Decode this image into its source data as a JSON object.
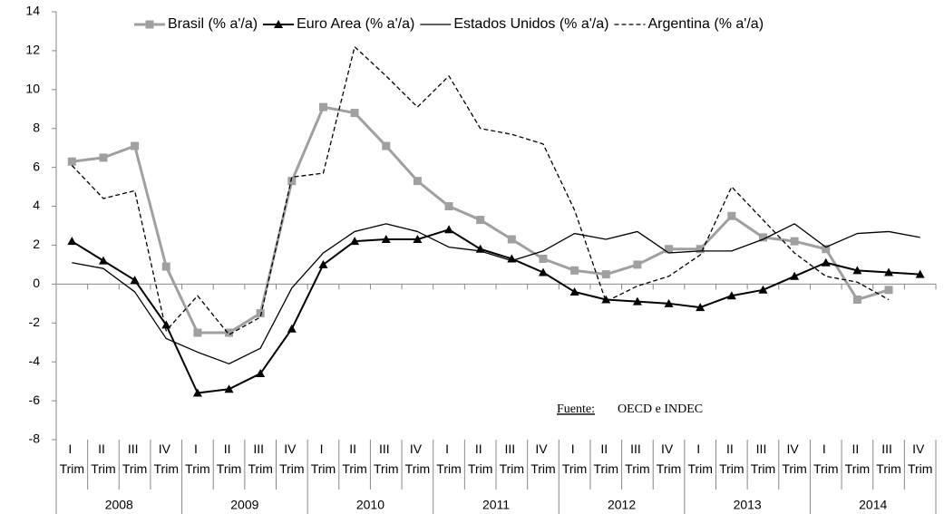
{
  "chart_data": {
    "type": "line",
    "categories": [
      "I Trim",
      "II Trim",
      "III Trim",
      "IV Trim",
      "I Trim",
      "II Trim",
      "III Trim",
      "IV Trim",
      "I Trim",
      "II Trim",
      "III Trim",
      "IV Trim",
      "I Trim",
      "II Trim",
      "III Trim",
      "IV Trim",
      "I Trim",
      "II Trim",
      "III Trim",
      "IV Trim",
      "I Trim",
      "II Trim",
      "III Trim",
      "IV Trim",
      "I Trim",
      "II Trim",
      "III Trim",
      "IV Trim"
    ],
    "years": [
      "2008",
      "2009",
      "2010",
      "2011",
      "2012",
      "2013",
      "2014"
    ],
    "series": [
      {
        "name": "Brasil (% a'/a)",
        "color": "#a0a0a0",
        "marker": "square",
        "dash": "solid",
        "width": 3,
        "values": [
          6.3,
          6.5,
          7.1,
          0.9,
          -2.5,
          -2.5,
          -1.5,
          5.3,
          9.1,
          8.8,
          7.1,
          5.3,
          4.0,
          3.3,
          2.3,
          1.3,
          0.7,
          0.5,
          1.0,
          1.8,
          1.8,
          3.5,
          2.4,
          2.2,
          1.8,
          -0.8,
          -0.3,
          null
        ]
      },
      {
        "name": "Euro Area (% a'/a)",
        "color": "#000000",
        "marker": "triangle",
        "dash": "solid",
        "width": 2,
        "values": [
          2.2,
          1.2,
          0.2,
          -2.1,
          -5.6,
          -5.4,
          -4.6,
          -2.3,
          1.0,
          2.2,
          2.3,
          2.3,
          2.8,
          1.8,
          1.3,
          0.6,
          -0.4,
          -0.8,
          -0.9,
          -1.0,
          -1.2,
          -0.6,
          -0.3,
          0.4,
          1.1,
          0.7,
          0.6,
          0.5
        ]
      },
      {
        "name": "Estados Unidos (% a'/a)",
        "color": "#000000",
        "marker": "none",
        "dash": "solid",
        "width": 1.3,
        "values": [
          1.1,
          0.8,
          -0.4,
          -2.8,
          -3.5,
          -4.1,
          -3.3,
          -0.2,
          1.6,
          2.7,
          3.1,
          2.7,
          1.9,
          1.7,
          1.2,
          1.7,
          2.6,
          2.3,
          2.7,
          1.6,
          1.7,
          1.7,
          2.3,
          3.1,
          1.9,
          2.6,
          2.7,
          2.4
        ]
      },
      {
        "name": "Argentina (% a'/a)",
        "color": "#000000",
        "marker": "none",
        "dash": "dashed",
        "width": 1.3,
        "values": [
          6.1,
          4.4,
          4.8,
          -2.4,
          -0.6,
          -2.6,
          -1.7,
          5.5,
          5.7,
          12.2,
          10.7,
          9.1,
          10.7,
          8.0,
          7.7,
          7.2,
          3.8,
          -0.9,
          -0.1,
          0.4,
          1.5,
          5.0,
          3.3,
          1.6,
          0.4,
          0.1,
          -0.8,
          null
        ]
      }
    ],
    "ylim": [
      -8,
      14
    ],
    "yticks": [
      -8,
      -6,
      -4,
      -2,
      0,
      2,
      4,
      6,
      8,
      10,
      12,
      14
    ],
    "negative_tick_color": "#ff0000",
    "legend": "top",
    "source_label": "Fuente:",
    "source_text": "OECD e INDEC"
  }
}
